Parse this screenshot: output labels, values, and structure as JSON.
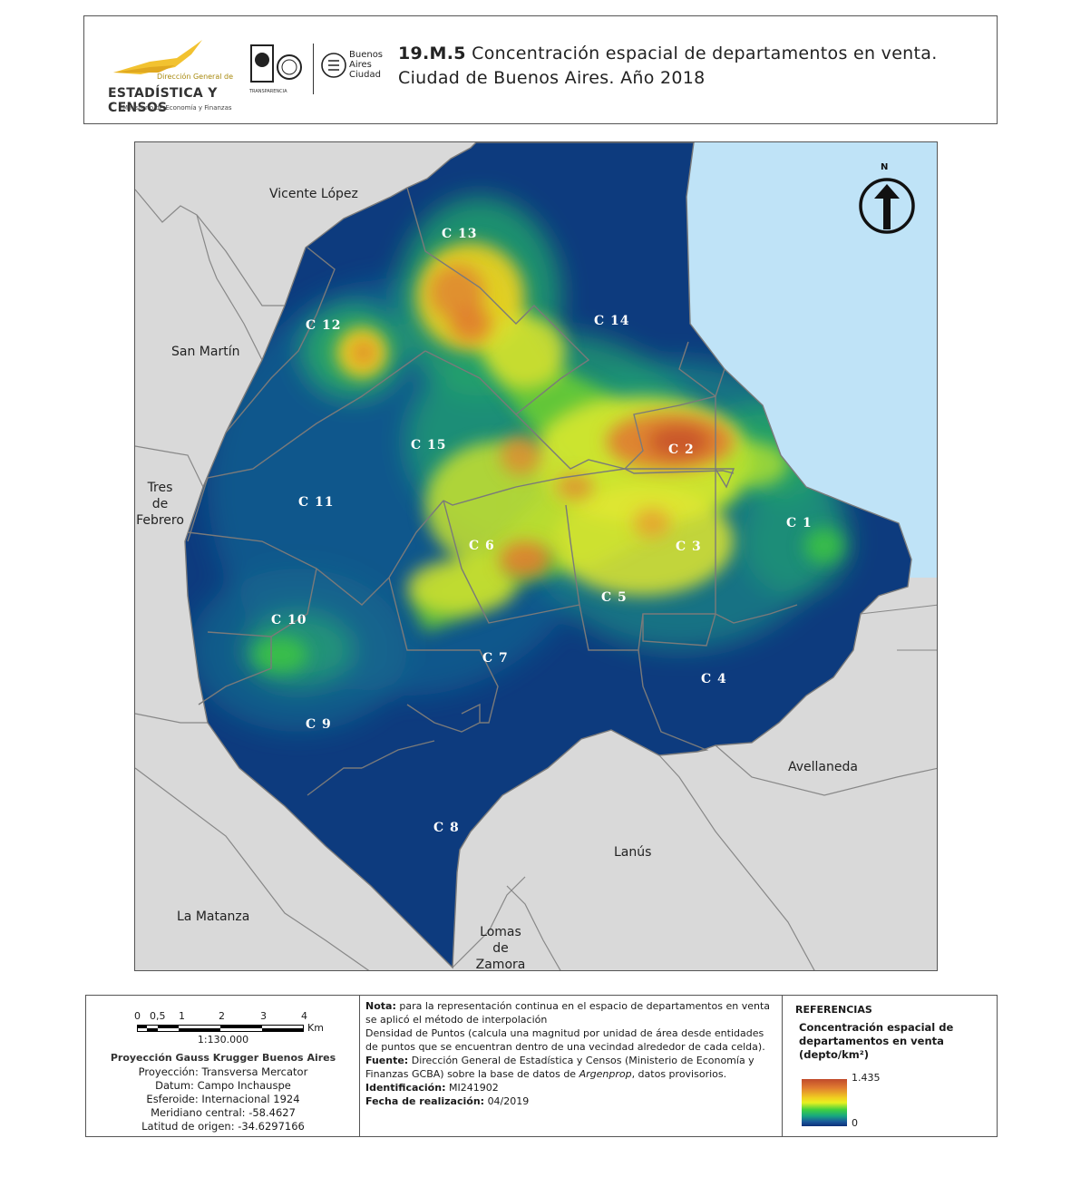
{
  "header": {
    "logo": {
      "small": "Dirección General de",
      "big": "ESTADÍSTICA Y CENSOS",
      "sub": "Ministerio de Economía y Finanzas",
      "seals_caption": "TRANSPARENCIA",
      "ba": [
        "Buenos",
        "Aires",
        "Ciudad"
      ]
    },
    "title_code": "19.M.5",
    "title_line1": "Concentración espacial de departamentos en venta.",
    "title_line2": "Ciudad de Buenos Aires. Año 2018"
  },
  "map": {
    "north_label": "N",
    "neighbors": [
      {
        "id": "vicente-lopez",
        "label": "Vicente López"
      },
      {
        "id": "san-martin",
        "label": "San Martín"
      },
      {
        "id": "tres-de-febrero",
        "label": "Tres\nde\nFebrero"
      },
      {
        "id": "avellaneda",
        "label": "Avellaneda"
      },
      {
        "id": "lanus",
        "label": "Lanús"
      },
      {
        "id": "la-matanza",
        "label": "La Matanza"
      },
      {
        "id": "lomas-de-zamora",
        "label": "Lomas\nde\nZamora"
      }
    ],
    "communes": [
      "C 1",
      "C 2",
      "C 3",
      "C 4",
      "C 5",
      "C 6",
      "C 7",
      "C 8",
      "C 9",
      "C 10",
      "C 11",
      "C 12",
      "C 13",
      "C 14",
      "C 15"
    ],
    "colors": {
      "water": "#bfe3f7",
      "land": "#d9d9d9",
      "city_base": "#0d3b7e",
      "border": "#777777"
    }
  },
  "footer": {
    "scale_ticks": [
      "0",
      "0,5",
      "1",
      "2",
      "3",
      "4"
    ],
    "scale_unit": "Km",
    "ratio": "1:130.000",
    "projection_title": "Proyección Gauss Krugger Buenos Aires",
    "projection_lines": [
      "Proyección: Transversa Mercator",
      "Datum: Campo Inchauspe",
      "Esferoide: Internacional 1924",
      "Meridiano central: -58.4627",
      "Latitud de origen: -34.6297166"
    ],
    "nota_label": "Nota:",
    "nota_text": "para la representación continua en el espacio de departamentos en venta se aplicó el método de interpolación",
    "nota_text2": "Densidad de Puntos (calcula una magnitud por unidad de área desde entidades de puntos que se encuentran dentro de una vecindad alrededor de cada celda).",
    "fuente_label": "Fuente:",
    "fuente_text": "Dirección General de Estadística y Censos (Ministerio de Economía y Finanzas GCBA) sobre la base de datos de ",
    "fuente_italic": "Argenprop",
    "fuente_end": ", datos provisorios.",
    "id_label": "Identificación:",
    "id_value": "MI241902",
    "fecha_label": "Fecha de realización:",
    "fecha_value": "04/2019",
    "ref_title": "REFERENCIAS",
    "ref_subtitle": "Concentración espacial de departamentos en venta (depto/km²)",
    "ramp_max": "1.435",
    "ramp_min": "0"
  }
}
